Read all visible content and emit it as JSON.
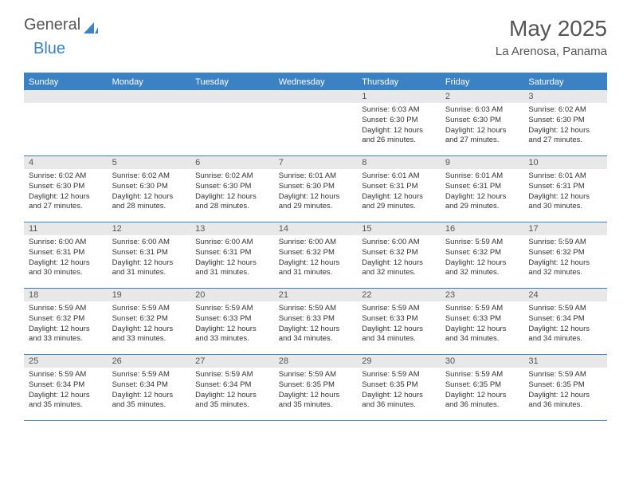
{
  "brand": {
    "word1": "General",
    "word2": "Blue"
  },
  "title": {
    "month": "May 2025",
    "location": "La Arenosa, Panama"
  },
  "colors": {
    "primary": "#3b82c4",
    "daynum_bg": "#e8e8e8",
    "text": "#333333",
    "heading": "#555555",
    "white": "#ffffff"
  },
  "weekdays": [
    "Sunday",
    "Monday",
    "Tuesday",
    "Wednesday",
    "Thursday",
    "Friday",
    "Saturday"
  ],
  "weeks": [
    [
      null,
      null,
      null,
      null,
      {
        "n": "1",
        "sr": "Sunrise: 6:03 AM",
        "ss": "Sunset: 6:30 PM",
        "d1": "Daylight: 12 hours",
        "d2": "and 26 minutes."
      },
      {
        "n": "2",
        "sr": "Sunrise: 6:03 AM",
        "ss": "Sunset: 6:30 PM",
        "d1": "Daylight: 12 hours",
        "d2": "and 27 minutes."
      },
      {
        "n": "3",
        "sr": "Sunrise: 6:02 AM",
        "ss": "Sunset: 6:30 PM",
        "d1": "Daylight: 12 hours",
        "d2": "and 27 minutes."
      }
    ],
    [
      {
        "n": "4",
        "sr": "Sunrise: 6:02 AM",
        "ss": "Sunset: 6:30 PM",
        "d1": "Daylight: 12 hours",
        "d2": "and 27 minutes."
      },
      {
        "n": "5",
        "sr": "Sunrise: 6:02 AM",
        "ss": "Sunset: 6:30 PM",
        "d1": "Daylight: 12 hours",
        "d2": "and 28 minutes."
      },
      {
        "n": "6",
        "sr": "Sunrise: 6:02 AM",
        "ss": "Sunset: 6:30 PM",
        "d1": "Daylight: 12 hours",
        "d2": "and 28 minutes."
      },
      {
        "n": "7",
        "sr": "Sunrise: 6:01 AM",
        "ss": "Sunset: 6:30 PM",
        "d1": "Daylight: 12 hours",
        "d2": "and 29 minutes."
      },
      {
        "n": "8",
        "sr": "Sunrise: 6:01 AM",
        "ss": "Sunset: 6:31 PM",
        "d1": "Daylight: 12 hours",
        "d2": "and 29 minutes."
      },
      {
        "n": "9",
        "sr": "Sunrise: 6:01 AM",
        "ss": "Sunset: 6:31 PM",
        "d1": "Daylight: 12 hours",
        "d2": "and 29 minutes."
      },
      {
        "n": "10",
        "sr": "Sunrise: 6:01 AM",
        "ss": "Sunset: 6:31 PM",
        "d1": "Daylight: 12 hours",
        "d2": "and 30 minutes."
      }
    ],
    [
      {
        "n": "11",
        "sr": "Sunrise: 6:00 AM",
        "ss": "Sunset: 6:31 PM",
        "d1": "Daylight: 12 hours",
        "d2": "and 30 minutes."
      },
      {
        "n": "12",
        "sr": "Sunrise: 6:00 AM",
        "ss": "Sunset: 6:31 PM",
        "d1": "Daylight: 12 hours",
        "d2": "and 31 minutes."
      },
      {
        "n": "13",
        "sr": "Sunrise: 6:00 AM",
        "ss": "Sunset: 6:31 PM",
        "d1": "Daylight: 12 hours",
        "d2": "and 31 minutes."
      },
      {
        "n": "14",
        "sr": "Sunrise: 6:00 AM",
        "ss": "Sunset: 6:32 PM",
        "d1": "Daylight: 12 hours",
        "d2": "and 31 minutes."
      },
      {
        "n": "15",
        "sr": "Sunrise: 6:00 AM",
        "ss": "Sunset: 6:32 PM",
        "d1": "Daylight: 12 hours",
        "d2": "and 32 minutes."
      },
      {
        "n": "16",
        "sr": "Sunrise: 5:59 AM",
        "ss": "Sunset: 6:32 PM",
        "d1": "Daylight: 12 hours",
        "d2": "and 32 minutes."
      },
      {
        "n": "17",
        "sr": "Sunrise: 5:59 AM",
        "ss": "Sunset: 6:32 PM",
        "d1": "Daylight: 12 hours",
        "d2": "and 32 minutes."
      }
    ],
    [
      {
        "n": "18",
        "sr": "Sunrise: 5:59 AM",
        "ss": "Sunset: 6:32 PM",
        "d1": "Daylight: 12 hours",
        "d2": "and 33 minutes."
      },
      {
        "n": "19",
        "sr": "Sunrise: 5:59 AM",
        "ss": "Sunset: 6:32 PM",
        "d1": "Daylight: 12 hours",
        "d2": "and 33 minutes."
      },
      {
        "n": "20",
        "sr": "Sunrise: 5:59 AM",
        "ss": "Sunset: 6:33 PM",
        "d1": "Daylight: 12 hours",
        "d2": "and 33 minutes."
      },
      {
        "n": "21",
        "sr": "Sunrise: 5:59 AM",
        "ss": "Sunset: 6:33 PM",
        "d1": "Daylight: 12 hours",
        "d2": "and 34 minutes."
      },
      {
        "n": "22",
        "sr": "Sunrise: 5:59 AM",
        "ss": "Sunset: 6:33 PM",
        "d1": "Daylight: 12 hours",
        "d2": "and 34 minutes."
      },
      {
        "n": "23",
        "sr": "Sunrise: 5:59 AM",
        "ss": "Sunset: 6:33 PM",
        "d1": "Daylight: 12 hours",
        "d2": "and 34 minutes."
      },
      {
        "n": "24",
        "sr": "Sunrise: 5:59 AM",
        "ss": "Sunset: 6:34 PM",
        "d1": "Daylight: 12 hours",
        "d2": "and 34 minutes."
      }
    ],
    [
      {
        "n": "25",
        "sr": "Sunrise: 5:59 AM",
        "ss": "Sunset: 6:34 PM",
        "d1": "Daylight: 12 hours",
        "d2": "and 35 minutes."
      },
      {
        "n": "26",
        "sr": "Sunrise: 5:59 AM",
        "ss": "Sunset: 6:34 PM",
        "d1": "Daylight: 12 hours",
        "d2": "and 35 minutes."
      },
      {
        "n": "27",
        "sr": "Sunrise: 5:59 AM",
        "ss": "Sunset: 6:34 PM",
        "d1": "Daylight: 12 hours",
        "d2": "and 35 minutes."
      },
      {
        "n": "28",
        "sr": "Sunrise: 5:59 AM",
        "ss": "Sunset: 6:35 PM",
        "d1": "Daylight: 12 hours",
        "d2": "and 35 minutes."
      },
      {
        "n": "29",
        "sr": "Sunrise: 5:59 AM",
        "ss": "Sunset: 6:35 PM",
        "d1": "Daylight: 12 hours",
        "d2": "and 36 minutes."
      },
      {
        "n": "30",
        "sr": "Sunrise: 5:59 AM",
        "ss": "Sunset: 6:35 PM",
        "d1": "Daylight: 12 hours",
        "d2": "and 36 minutes."
      },
      {
        "n": "31",
        "sr": "Sunrise: 5:59 AM",
        "ss": "Sunset: 6:35 PM",
        "d1": "Daylight: 12 hours",
        "d2": "and 36 minutes."
      }
    ]
  ]
}
